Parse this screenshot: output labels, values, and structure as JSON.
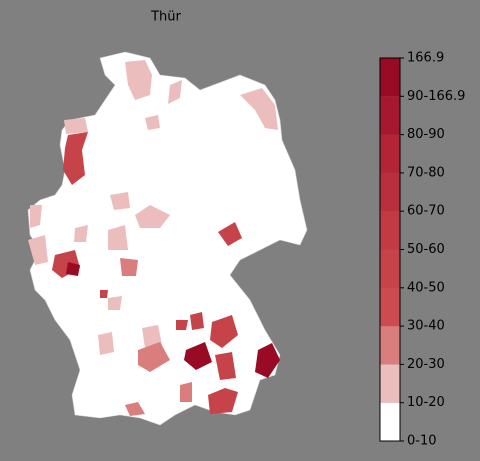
{
  "title": "Thür",
  "colorbar": {
    "labels": [
      "0-10",
      "10-20",
      "20-30",
      "30-40",
      "40-50",
      "50-60",
      "60-70",
      "70-80",
      "80-90",
      "90-166.9",
      "166.9"
    ],
    "colors": [
      "#ffffff",
      "#ebbdbd",
      "#d97d7d",
      "#cb4b50",
      "#c6434a",
      "#c13a44",
      "#ba2f3c",
      "#b22436",
      "#a6182f",
      "#990a24"
    ]
  }
}
